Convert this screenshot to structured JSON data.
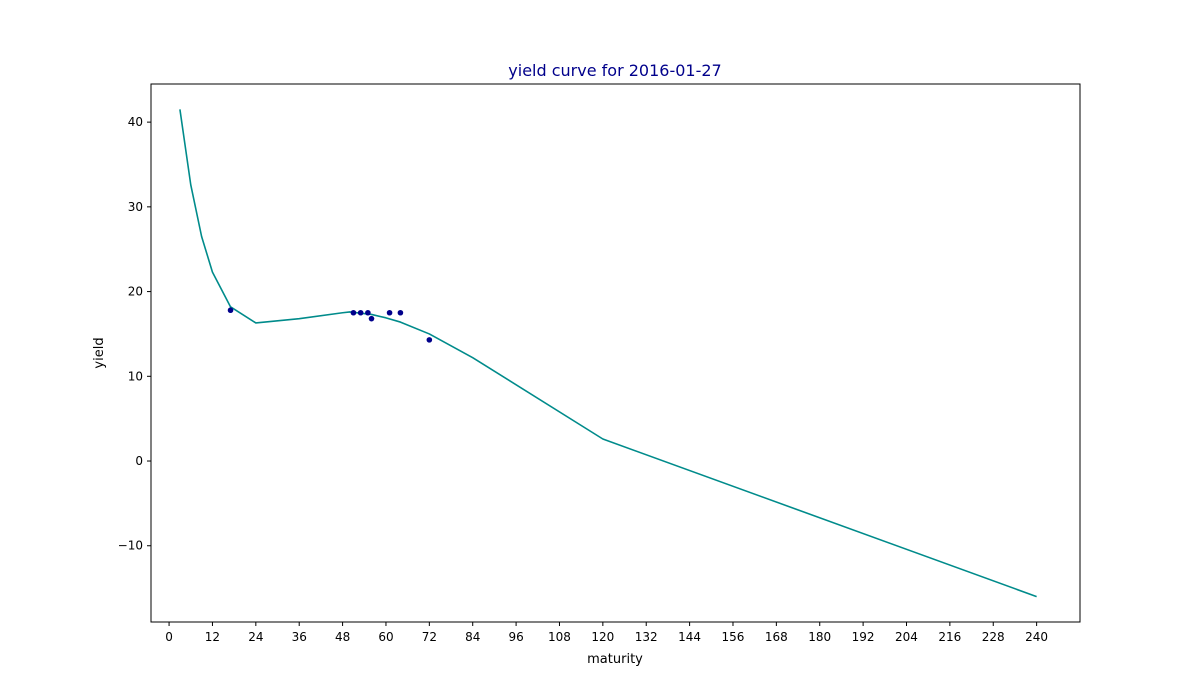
{
  "chart_data": {
    "type": "line",
    "title": "yield curve for 2016-01-27",
    "xlabel": "maturity",
    "ylabel": "yield",
    "xlim": [
      -5,
      252
    ],
    "ylim": [
      -19,
      44.5
    ],
    "xticks": [
      0,
      12,
      24,
      36,
      48,
      60,
      72,
      84,
      96,
      108,
      120,
      132,
      144,
      156,
      168,
      180,
      192,
      204,
      216,
      228,
      240
    ],
    "yticks": [
      -10,
      0,
      10,
      20,
      30,
      40
    ],
    "ytick_labels": [
      "−10",
      "0",
      "10",
      "20",
      "30",
      "40"
    ],
    "grid": false,
    "colors": {
      "title": "#00008b",
      "line": "#008b8b",
      "points": "#00008b"
    },
    "series": [
      {
        "type": "line",
        "x": [
          3,
          6,
          9,
          12,
          17,
          24,
          36,
          48,
          50,
          56,
          60,
          64,
          72,
          84,
          120,
          240
        ],
        "y": [
          41.5,
          32.6,
          26.5,
          22.3,
          18.2,
          16.3,
          16.8,
          17.5,
          17.6,
          17.3,
          16.9,
          16.4,
          15.0,
          12.2,
          2.6,
          -16.0
        ]
      },
      {
        "type": "scatter",
        "x": [
          17,
          51,
          53,
          55,
          56,
          61,
          64,
          72
        ],
        "y": [
          17.8,
          17.5,
          17.5,
          17.5,
          16.8,
          17.5,
          17.5,
          14.3
        ]
      }
    ]
  }
}
